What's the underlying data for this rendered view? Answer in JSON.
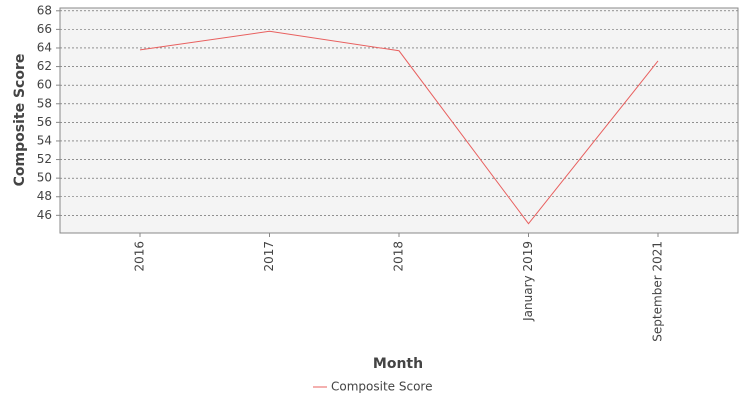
{
  "chart_data": {
    "type": "line",
    "x_label": "Month",
    "y_label": "Composite Score",
    "categories": [
      "2016",
      "2017",
      "2018",
      "January 2019",
      "September 2021"
    ],
    "series": [
      {
        "name": "Composite Score",
        "color": "#e8605f",
        "values": [
          63.8,
          65.8,
          63.7,
          45.1,
          62.6
        ]
      }
    ],
    "ylim": [
      44.1,
      68.3
    ],
    "yticks": [
      46,
      48,
      50,
      52,
      54,
      56,
      58,
      60,
      62,
      64,
      66,
      68
    ],
    "grid": true,
    "legend": "bottom"
  }
}
